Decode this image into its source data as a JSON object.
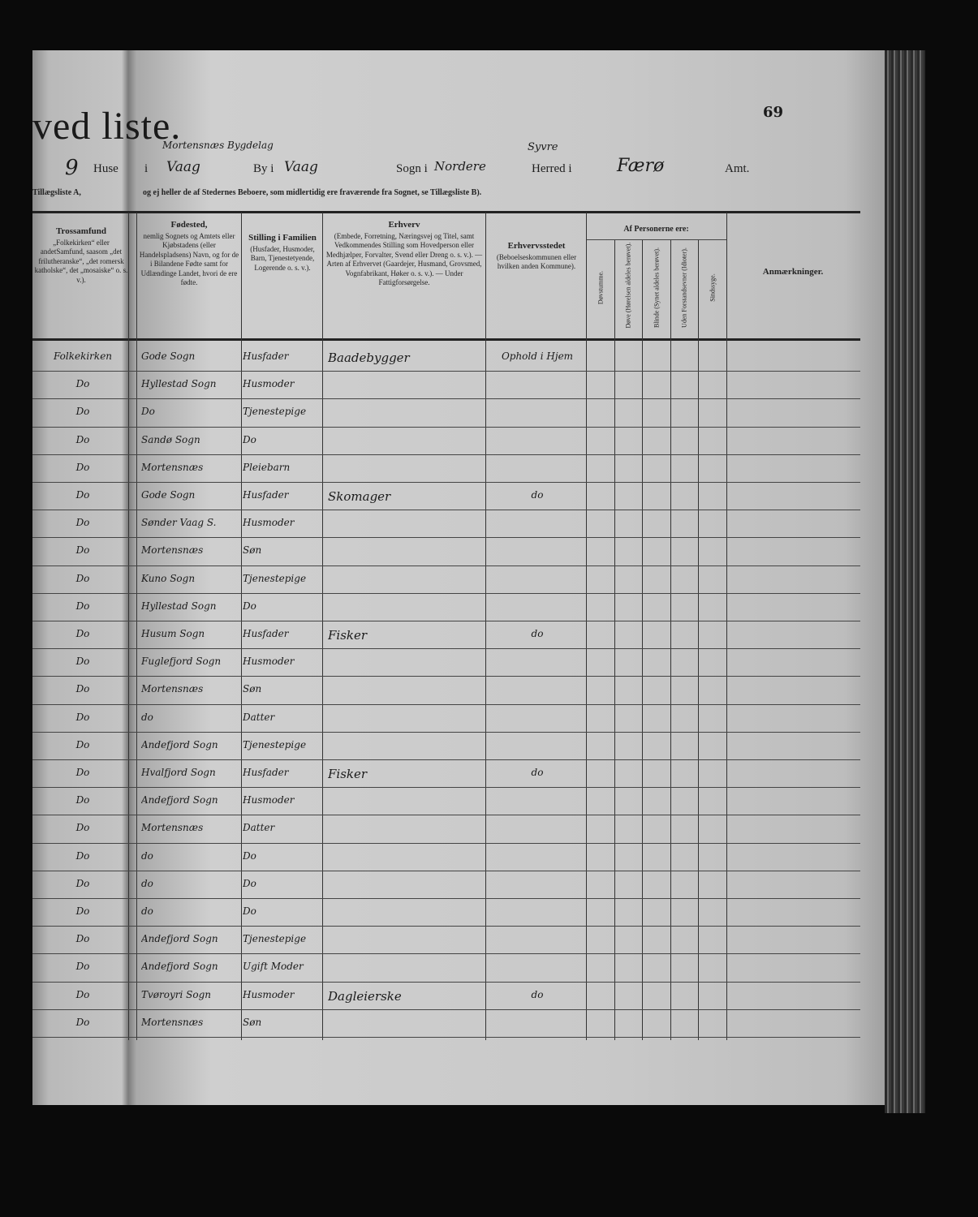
{
  "header": {
    "title": "ved liste.",
    "page_number": "69",
    "line": {
      "house_no": "9",
      "huse_label": "Huse",
      "i_label": "i",
      "place_above": "Mortensnæs Bygdelag",
      "place": "Vaag",
      "by_label": "By i",
      "by_value": "Vaag",
      "sogn_label": "Sogn i",
      "sogn_value": "Nordere",
      "herred_above": "Syvre",
      "herred_label": "Herred i",
      "herred_value": "Færø",
      "amt_label": "Amt."
    },
    "subtitle_left": "Tillægsliste A,",
    "subtitle": "og ej heller de af Stedernes Beboere, som midlertidig ere fraværende fra Sognet, se Tillægsliste B)."
  },
  "columns": {
    "tros": {
      "title": "Trossamfund",
      "desc": "„Folkekirken“ eller andetSamfund, saasom „det frilutheranske“, „det romersk katholske“, det „mosaiske“ o. s. v.)."
    },
    "fodested": {
      "title": "Fødested,",
      "desc": "nemlig Sognets og Amtets eller Kjøbstadens (eller Handelspladsens) Navn, og for de i Bilandene Fødte samt for Udlændinge Landet, hvori de ere fødte."
    },
    "stilling": {
      "title": "Stilling i Familien",
      "desc": "(Husfader, Husmoder, Barn, Tjenestetyende, Logerende o. s. v.)."
    },
    "erhverv": {
      "title": "Erhverv",
      "desc": "(Embede, Forretning, Næringsvej og Titel, samt Vedkommendes Stilling som Hovedperson eller Medhjælper, Forvalter, Svend eller Dreng o. s. v.). — Arten af Erhvervet (Gaardejer, Husmand, Grovsmed, Vognfabrikant, Høker o. s. v.). — Under Fattigforsørgelse."
    },
    "erhvervsstedet": {
      "title": "Erhvervsstedet",
      "desc": "(Beboelseskommunen eller hvilken anden Kommune)."
    },
    "af_personerne": "Af Personerne ere:",
    "sub": [
      "Døvstumme.",
      "Døve (Hørelsen aldeles berøvet).",
      "Blinde (Synet aldeles berøvet).",
      "Uden Forstandsevner (Idioter).",
      "Sindssyge."
    ],
    "anm": "Anmærkninger."
  },
  "rows": [
    {
      "tros": "Folkekirken",
      "fodested": "Gode Sogn",
      "stilling": "Husfader",
      "erhverv": "Baadebygger",
      "sted": "Ophold i Hjem"
    },
    {
      "tros": "Do",
      "fodested": "Hyllestad Sogn",
      "stilling": "Husmoder",
      "erhverv": "",
      "sted": ""
    },
    {
      "tros": "Do",
      "fodested": "Do",
      "stilling": "Tjenestepige",
      "erhverv": "",
      "sted": ""
    },
    {
      "tros": "Do",
      "fodested": "Sandø Sogn",
      "stilling": "Do",
      "erhverv": "",
      "sted": ""
    },
    {
      "tros": "Do",
      "fodested": "Mortensnæs",
      "stilling": "Pleiebarn",
      "erhverv": "",
      "sted": ""
    },
    {
      "tros": "Do",
      "fodested": "Gode Sogn",
      "stilling": "Husfader",
      "erhverv": "Skomager",
      "sted": "do"
    },
    {
      "tros": "Do",
      "fodested": "Sønder Vaag S.",
      "stilling": "Husmoder",
      "erhverv": "",
      "sted": ""
    },
    {
      "tros": "Do",
      "fodested": "Mortensnæs",
      "stilling": "Søn",
      "erhverv": "",
      "sted": ""
    },
    {
      "tros": "Do",
      "fodested": "Kuno Sogn",
      "stilling": "Tjenestepige",
      "erhverv": "",
      "sted": ""
    },
    {
      "tros": "Do",
      "fodested": "Hyllestad Sogn",
      "stilling": "Do",
      "erhverv": "",
      "sted": ""
    },
    {
      "tros": "Do",
      "fodested": "Husum Sogn",
      "stilling": "Husfader",
      "erhverv": "Fisker",
      "sted": "do"
    },
    {
      "tros": "Do",
      "fodested": "Fuglefjord Sogn",
      "stilling": "Husmoder",
      "erhverv": "",
      "sted": ""
    },
    {
      "tros": "Do",
      "fodested": "Mortensnæs",
      "stilling": "Søn",
      "erhverv": "",
      "sted": ""
    },
    {
      "tros": "Do",
      "fodested": "do",
      "stilling": "Datter",
      "erhverv": "",
      "sted": ""
    },
    {
      "tros": "Do",
      "fodested": "Andefjord Sogn",
      "stilling": "Tjenestepige",
      "erhverv": "",
      "sted": ""
    },
    {
      "tros": "Do",
      "fodested": "Hvalfjord Sogn",
      "stilling": "Husfader",
      "erhverv": "Fisker",
      "sted": "do"
    },
    {
      "tros": "Do",
      "fodested": "Andefjord Sogn",
      "stilling": "Husmoder",
      "erhverv": "",
      "sted": ""
    },
    {
      "tros": "Do",
      "fodested": "Mortensnæs",
      "stilling": "Datter",
      "erhverv": "",
      "sted": ""
    },
    {
      "tros": "Do",
      "fodested": "do",
      "stilling": "Do",
      "erhverv": "",
      "sted": ""
    },
    {
      "tros": "Do",
      "fodested": "do",
      "stilling": "Do",
      "erhverv": "",
      "sted": ""
    },
    {
      "tros": "Do",
      "fodested": "do",
      "stilling": "Do",
      "erhverv": "",
      "sted": ""
    },
    {
      "tros": "Do",
      "fodested": "Andefjord Sogn",
      "stilling": "Tjenestepige",
      "erhverv": "",
      "sted": ""
    },
    {
      "tros": "Do",
      "fodested": "Andefjord Sogn",
      "stilling": "Ugift Moder",
      "erhverv": "",
      "sted": ""
    },
    {
      "tros": "Do",
      "fodested": "Tvøroyri Sogn",
      "stilling": "Husmoder",
      "erhverv": "Dagleierske",
      "sted": "do"
    },
    {
      "tros": "Do",
      "fodested": "Mortensnæs",
      "stilling": "Søn",
      "erhverv": "",
      "sted": ""
    }
  ]
}
